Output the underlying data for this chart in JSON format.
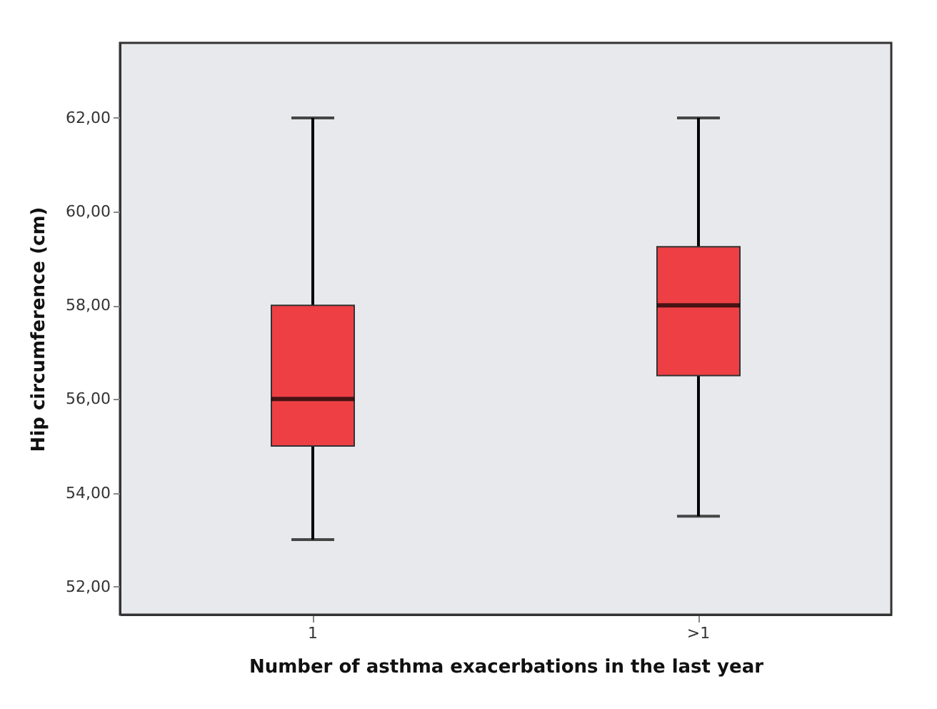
{
  "chart_data": {
    "type": "box",
    "xlabel": "Number of asthma exacerbations in the last year",
    "ylabel": "Hip circumference (cm)",
    "categories": [
      "1",
      ">1"
    ],
    "series": [
      {
        "color": "#ee4044",
        "boxes": [
          {
            "low": 53,
            "q1": 55,
            "median": 56,
            "q3": 58,
            "high": 62
          },
          {
            "low": 53.5,
            "q1": 56.5,
            "median": 58,
            "q3": 59.25,
            "high": 62
          }
        ]
      }
    ],
    "ylim": [
      51.4,
      63.6
    ],
    "yticks": [
      {
        "value": 52,
        "label": "52,00"
      },
      {
        "value": 54,
        "label": "54,00"
      },
      {
        "value": 56,
        "label": "56,00"
      },
      {
        "value": 58,
        "label": "58,00"
      },
      {
        "value": 60,
        "label": "60,00"
      },
      {
        "value": 62,
        "label": "62,00"
      }
    ],
    "grid": false
  }
}
